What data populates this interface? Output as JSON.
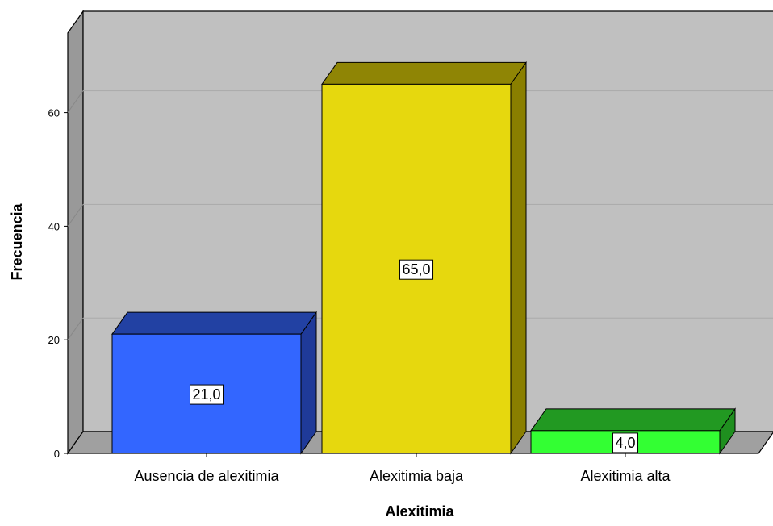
{
  "chart_data": {
    "type": "bar",
    "title": "",
    "xlabel": "Alexitimia",
    "ylabel": "Frecuencia",
    "categories": [
      "Ausencia de alexitimia",
      "Alexitimia baja",
      "Alexitimia alta"
    ],
    "values": [
      21,
      65,
      4
    ],
    "data_labels": [
      "21,0",
      "65,0",
      "4,0"
    ],
    "y_ticks": [
      0,
      20,
      40,
      60
    ],
    "ylim": [
      0,
      75
    ],
    "grid": true,
    "legend": "none",
    "bar_colors": [
      "#3366ff",
      "#e6d80e",
      "#33ff33"
    ],
    "bar_top_colors": [
      "#2241a3",
      "#8f8505",
      "#229922"
    ],
    "bar_side_colors": [
      "#1f3a99",
      "#8a7f00",
      "#1f8f1f"
    ],
    "wall_color": "#c0c0c0",
    "floor_color": "#a0a0a0"
  }
}
